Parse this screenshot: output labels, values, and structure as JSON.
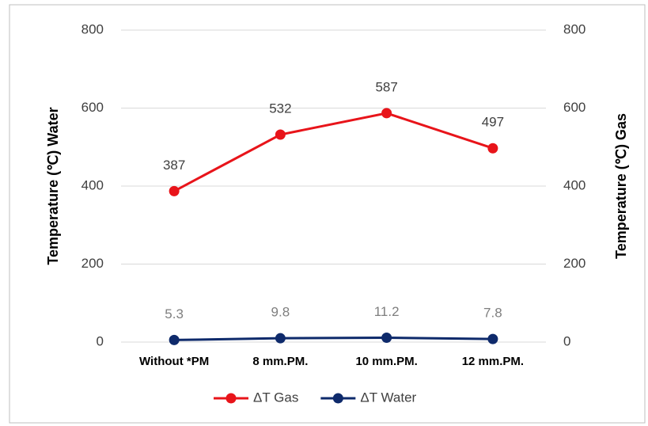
{
  "chart_data": {
    "type": "line",
    "categories": [
      "Without *PM",
      "8 mm.PM.",
      "10 mm.PM.",
      "12 mm.PM."
    ],
    "y_label": "Temperature (℃) Water",
    "y2_label": "Temperature (℃) Gas",
    "series": [
      {
        "name": "ΔT Gas",
        "color": "#e8141a",
        "values": [
          387,
          532,
          587,
          497
        ],
        "axis": "y2"
      },
      {
        "name": "ΔT Water",
        "color": "#0e2a6b",
        "values": [
          5.3,
          9.8,
          11.2,
          7.8
        ]
      }
    ],
    "ylim": [
      0,
      800
    ],
    "yticks": [
      0,
      200,
      400,
      600,
      800
    ],
    "y2lim": [
      0,
      800
    ],
    "y2ticks": [
      0,
      200,
      400,
      600,
      800
    ],
    "grid": true,
    "legend": "bottom"
  }
}
